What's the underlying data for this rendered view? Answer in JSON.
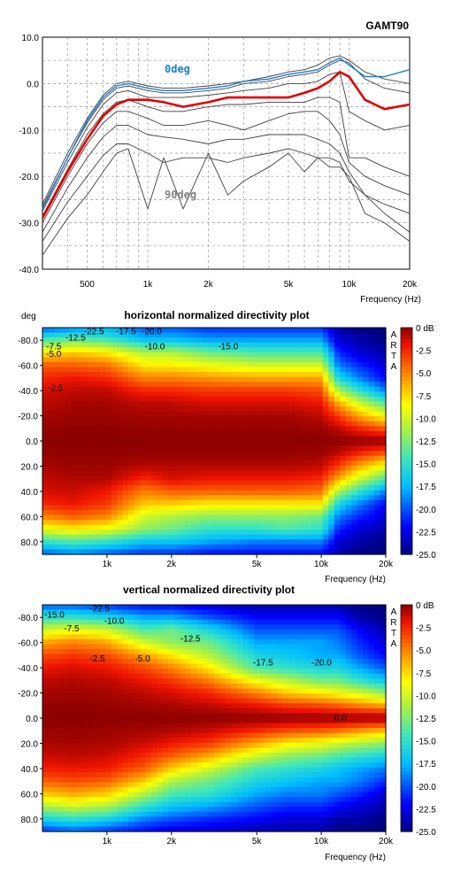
{
  "chart_data": [
    {
      "type": "line",
      "title": "GAMT90",
      "xlabel": "Frequency (Hz)",
      "ylabel": "",
      "xscale": "log",
      "xlim": [
        300,
        20000
      ],
      "ylim": [
        -40,
        10
      ],
      "grid": true,
      "x_tick_labels": [
        "500",
        "1k",
        "2k",
        "5k",
        "10k",
        "20k"
      ],
      "x_tick_values": [
        500,
        1000,
        2000,
        5000,
        10000,
        20000
      ],
      "y_tick_labels": [
        "10.0",
        "0.0",
        "-10.0",
        "-20.0",
        "-30.0",
        "-40.0"
      ],
      "y_tick_values": [
        10,
        0,
        -10,
        -20,
        -30,
        -40
      ],
      "annotations": [
        {
          "text": "0deg",
          "color": "#1a7fd0"
        },
        {
          "text": "90deg",
          "color": "#808080"
        }
      ],
      "x": [
        300,
        400,
        500,
        600,
        700,
        800,
        1000,
        1200,
        1500,
        2000,
        2500,
        3000,
        4000,
        5000,
        6000,
        7000,
        8000,
        9000,
        10000,
        12000,
        15000,
        20000
      ],
      "series": [
        {
          "color": "#1a7fd0",
          "values": [
            -27,
            -16,
            -8,
            -3,
            -0.5,
            0,
            -1,
            -1.5,
            -1.5,
            -1,
            -0.5,
            0.5,
            1,
            2,
            2.5,
            3,
            4.5,
            5.5,
            4,
            1.5,
            1.5,
            3
          ]
        },
        {
          "color": "#e00000",
          "values": [
            -29,
            -19,
            -12,
            -7,
            -4.5,
            -3.5,
            -3.5,
            -4,
            -5,
            -4,
            -3,
            -3,
            -3,
            -3,
            -2,
            -1,
            0.5,
            2.5,
            1.5,
            -3.5,
            -5.5,
            -4.5
          ]
        },
        {
          "color": "#404040",
          "values": [
            -26,
            -15,
            -7.5,
            -2.5,
            0,
            0.5,
            -0.5,
            -1,
            -1,
            -0.5,
            0,
            0.5,
            1.5,
            2.5,
            3,
            4,
            5.5,
            6,
            5,
            2.5,
            1,
            0
          ]
        },
        {
          "color": "#404040",
          "values": [
            -26.5,
            -16,
            -8.5,
            -3.5,
            -1,
            -0.5,
            -1.5,
            -2,
            -2,
            -1.5,
            -1,
            0,
            0.5,
            1.5,
            2,
            2.5,
            4,
            5,
            4.5,
            1,
            -1,
            -2
          ]
        },
        {
          "color": "#404040",
          "values": [
            -27.5,
            -17,
            -9.5,
            -4.5,
            -2,
            -1.5,
            -3,
            -3,
            -3,
            -2.5,
            -2,
            -1.5,
            -1,
            0,
            0,
            0.5,
            2,
            2.5,
            -6,
            -8,
            -10,
            -9
          ]
        },
        {
          "color": "#404040",
          "values": [
            -28.5,
            -18.5,
            -11,
            -6.5,
            -4,
            -3.5,
            -5,
            -6,
            -6,
            -5,
            -4.5,
            -4.5,
            -4,
            -4,
            -4,
            -3,
            -3,
            -4,
            -16,
            -16,
            -18,
            -20
          ]
        },
        {
          "color": "#404040",
          "values": [
            -30,
            -20,
            -13,
            -8.5,
            -6,
            -6,
            -7.5,
            -9,
            -9,
            -8,
            -9,
            -10,
            -8,
            -6.5,
            -6,
            -6,
            -8,
            -11,
            -17,
            -20,
            -22,
            -24
          ]
        },
        {
          "color": "#404040",
          "values": [
            -32,
            -22.5,
            -16,
            -11.5,
            -9,
            -9,
            -11,
            -11.5,
            -12,
            -13,
            -12,
            -12,
            -11,
            -11,
            -11,
            -12,
            -13,
            -15,
            -19,
            -24,
            -26,
            -28
          ]
        },
        {
          "color": "#404040",
          "values": [
            -34,
            -25.5,
            -20,
            -15.5,
            -13,
            -13,
            -15,
            -17,
            -16,
            -16,
            -17,
            -16,
            -15,
            -14,
            -15,
            -16,
            -16,
            -17,
            -21,
            -24,
            -28,
            -32
          ]
        },
        {
          "color": "#404040",
          "values": [
            -37,
            -29,
            -24,
            -19,
            -15,
            -14,
            -27,
            -16,
            -27,
            -15,
            -24,
            -21,
            -18,
            -15,
            -19,
            -16,
            -18,
            -18,
            -20,
            -28,
            -30,
            -34
          ]
        }
      ]
    },
    {
      "type": "heatmap",
      "title": "horizontal normalized directivity plot",
      "xlabel": "Frequency (Hz)",
      "ylabel": "deg",
      "xscale": "log",
      "xlim": [
        500,
        20000
      ],
      "ylim": [
        -90,
        90
      ],
      "x_tick_labels": [
        "1k",
        "2k",
        "5k",
        "10k",
        "20k"
      ],
      "x_tick_values": [
        1000,
        2000,
        5000,
        10000,
        20000
      ],
      "y_tick_labels": [
        "-80.0",
        "-60.0",
        "-40.0",
        "-20.0",
        "0.0",
        "20.0",
        "40.0",
        "60.0",
        "80.0"
      ],
      "y_tick_values": [
        -80,
        -60,
        -40,
        -20,
        0,
        20,
        40,
        60,
        80
      ],
      "colorbar_labels": [
        "0 dB",
        "-2.5",
        "-5.0",
        "-7.5",
        "-10.0",
        "-12.5",
        "-15.0",
        "-17.5",
        "-20.0",
        "-22.5",
        "-25.0"
      ],
      "colorbar_range": [
        -25,
        0
      ],
      "side_label": [
        "A",
        "R",
        "T",
        "A"
      ],
      "contour_labels": [
        "-22.5",
        "-17.5",
        "-20.0",
        "-12.5",
        "-7.5",
        "-5.0",
        "-2.5",
        "-10.0",
        "-15.0"
      ],
      "freq": [
        500,
        700,
        1000,
        1500,
        2000,
        3000,
        5000,
        7000,
        10000,
        12000,
        15000,
        20000
      ],
      "angles": [
        -90,
        -80,
        -70,
        -60,
        -50,
        -40,
        -30,
        -20,
        -10,
        0,
        10,
        20,
        30,
        40,
        50,
        60,
        70,
        80,
        90
      ],
      "values": [
        [
          -20,
          -19,
          -18,
          -20,
          -20,
          -21,
          -21,
          -21,
          -21,
          -24,
          -25,
          -25
        ],
        [
          -14,
          -13,
          -14,
          -17,
          -17,
          -18,
          -18,
          -18,
          -18,
          -23,
          -24,
          -25
        ],
        [
          -8,
          -7,
          -8,
          -11,
          -11,
          -13,
          -14,
          -14,
          -14,
          -21,
          -23,
          -24
        ],
        [
          -4,
          -4,
          -4.5,
          -8,
          -8,
          -9,
          -10,
          -10,
          -10,
          -19,
          -21,
          -23
        ],
        [
          -2.5,
          -2,
          -2.5,
          -5,
          -5,
          -5.5,
          -6,
          -6,
          -6,
          -16,
          -19,
          -22
        ],
        [
          -1.5,
          -1,
          -1,
          -2.5,
          -2.5,
          -3,
          -3,
          -3,
          -3.5,
          -11,
          -15,
          -19
        ],
        [
          -1,
          -0.5,
          -0.5,
          -1,
          -1,
          -1.5,
          -1.5,
          -1.5,
          -2,
          -6,
          -10,
          -14
        ],
        [
          -0.5,
          -0.3,
          -0.3,
          -0.5,
          -0.5,
          -0.5,
          -0.5,
          -0.5,
          -1,
          -3,
          -6,
          -9
        ],
        [
          -0.2,
          -0.1,
          -0.1,
          -0.2,
          -0.2,
          -0.2,
          -0.2,
          -0.2,
          -0.3,
          -1,
          -2.5,
          -4
        ],
        [
          0,
          0,
          0,
          0,
          0,
          0,
          0,
          0,
          0,
          0,
          0,
          0
        ],
        [
          -0.2,
          -0.1,
          -0.1,
          -0.2,
          -0.2,
          -0.2,
          -0.2,
          -0.2,
          -0.3,
          -1,
          -2.5,
          -4
        ],
        [
          -0.5,
          -0.3,
          -0.3,
          -0.8,
          -0.8,
          -0.8,
          -0.8,
          -0.8,
          -1,
          -3,
          -6,
          -9
        ],
        [
          -1,
          -0.7,
          -0.7,
          -2.5,
          -1.5,
          -2,
          -2,
          -2,
          -2.5,
          -6,
          -10,
          -14
        ],
        [
          -1.5,
          -1.2,
          -2,
          -5,
          -4,
          -4,
          -4,
          -4,
          -4.5,
          -11,
          -15,
          -19
        ],
        [
          -2.5,
          -2,
          -3,
          -7,
          -7,
          -8,
          -8,
          -8,
          -8,
          -16,
          -19,
          -22
        ],
        [
          -5,
          -4,
          -5,
          -10,
          -11,
          -12,
          -12,
          -12,
          -13,
          -19,
          -21,
          -23
        ],
        [
          -9,
          -8,
          -9,
          -12,
          -13,
          -15,
          -15,
          -14,
          -15,
          -21,
          -23,
          -24
        ],
        [
          -15,
          -14,
          -15,
          -17,
          -17,
          -18,
          -19,
          -19,
          -19,
          -23,
          -24,
          -25
        ],
        [
          -20,
          -19,
          -20,
          -21,
          -21,
          -22,
          -22,
          -22,
          -22,
          -24,
          -25,
          -25
        ]
      ]
    },
    {
      "type": "heatmap",
      "title": "vertical normalized directivity plot",
      "xlabel": "Frequency (Hz)",
      "ylabel": "",
      "xscale": "log",
      "xlim": [
        500,
        20000
      ],
      "ylim": [
        -90,
        90
      ],
      "x_tick_labels": [
        "1k",
        "2k",
        "5k",
        "10k",
        "20k"
      ],
      "x_tick_values": [
        1000,
        2000,
        5000,
        10000,
        20000
      ],
      "y_tick_labels": [
        "-80.0",
        "-60.0",
        "-40.0",
        "-20.0",
        "0.0",
        "20.0",
        "40.0",
        "60.0",
        "80.0"
      ],
      "y_tick_values": [
        -80,
        -60,
        -40,
        -20,
        0,
        20,
        40,
        60,
        80
      ],
      "colorbar_labels": [
        "0 dB",
        "-2.5",
        "-5.0",
        "-7.5",
        "-10.0",
        "-12.5",
        "-15.0",
        "-17.5",
        "-20.0",
        "-22.5",
        "-25.0"
      ],
      "colorbar_range": [
        -25,
        0
      ],
      "side_label": [
        "A",
        "R",
        "T",
        "A"
      ],
      "contour_labels": [
        "-22.5",
        "-15.0",
        "-10.0",
        "-7.5",
        "-12.5",
        "-2.5",
        "-5.0",
        "-17.5",
        "-20.0",
        "0.0"
      ],
      "freq": [
        500,
        700,
        1000,
        1500,
        2000,
        3000,
        5000,
        7000,
        10000,
        12000,
        15000,
        20000
      ],
      "angles": [
        -90,
        -80,
        -70,
        -60,
        -50,
        -40,
        -30,
        -20,
        -10,
        0,
        10,
        20,
        30,
        40,
        50,
        60,
        70,
        80,
        90
      ],
      "values": [
        [
          -20,
          -20,
          -21,
          -22,
          -22,
          -23,
          -24,
          -24,
          -24,
          -24,
          -25,
          -25
        ],
        [
          -15,
          -15,
          -16,
          -18,
          -18,
          -20,
          -22,
          -22,
          -22,
          -22,
          -24,
          -25
        ],
        [
          -10,
          -9,
          -10,
          -14,
          -13,
          -16,
          -20,
          -20,
          -20,
          -20,
          -22,
          -24
        ],
        [
          -6,
          -5,
          -6,
          -10,
          -12,
          -13,
          -18,
          -18,
          -18,
          -19,
          -21,
          -23
        ],
        [
          -3.5,
          -3,
          -3.5,
          -6,
          -8,
          -11,
          -16,
          -17,
          -18,
          -18,
          -20,
          -22
        ],
        [
          -2,
          -1.5,
          -2,
          -3.5,
          -5,
          -8,
          -14,
          -15,
          -16,
          -16,
          -18,
          -20
        ],
        [
          -1,
          -0.8,
          -1,
          -2,
          -3,
          -5,
          -9,
          -11,
          -13,
          -13,
          -15,
          -17
        ],
        [
          -0.5,
          -0.4,
          -0.5,
          -1,
          -1.5,
          -2.5,
          -5,
          -7,
          -8,
          -9,
          -10,
          -12
        ],
        [
          -0.2,
          -0.1,
          -0.2,
          -0.4,
          -0.6,
          -1,
          -2,
          -3,
          -3.5,
          -4,
          -5,
          -6
        ],
        [
          0,
          0,
          0,
          0,
          0,
          0,
          0,
          0,
          0,
          0,
          0,
          0
        ],
        [
          -0.3,
          -0.2,
          -0.3,
          -0.5,
          -0.7,
          -1.2,
          -2.5,
          -3.5,
          -4,
          -4.5,
          -5.5,
          -6.5
        ],
        [
          -0.6,
          -0.5,
          -0.6,
          -1.2,
          -2,
          -3,
          -6,
          -8,
          -9,
          -10,
          -11,
          -12
        ],
        [
          -1.2,
          -1,
          -1.2,
          -2.5,
          -4,
          -6,
          -10,
          -12,
          -13,
          -14,
          -15,
          -16
        ],
        [
          -2.2,
          -2,
          -2.2,
          -4,
          -7,
          -10,
          -14,
          -15,
          -16,
          -17,
          -18,
          -19
        ],
        [
          -4,
          -3.5,
          -4,
          -7,
          -11,
          -13,
          -16,
          -17,
          -18,
          -18,
          -19,
          -21
        ],
        [
          -7,
          -6,
          -7,
          -11,
          -14,
          -15,
          -18,
          -19,
          -19,
          -20,
          -21,
          -23
        ],
        [
          -11,
          -10,
          -11,
          -15,
          -17,
          -18,
          -20,
          -21,
          -21,
          -22,
          -23,
          -24
        ],
        [
          -16,
          -15,
          -16,
          -19,
          -20,
          -21,
          -22,
          -23,
          -23,
          -24,
          -24,
          -25
        ],
        [
          -21,
          -20,
          -21,
          -22,
          -23,
          -23,
          -24,
          -24,
          -24,
          -25,
          -25,
          -25
        ]
      ]
    }
  ]
}
